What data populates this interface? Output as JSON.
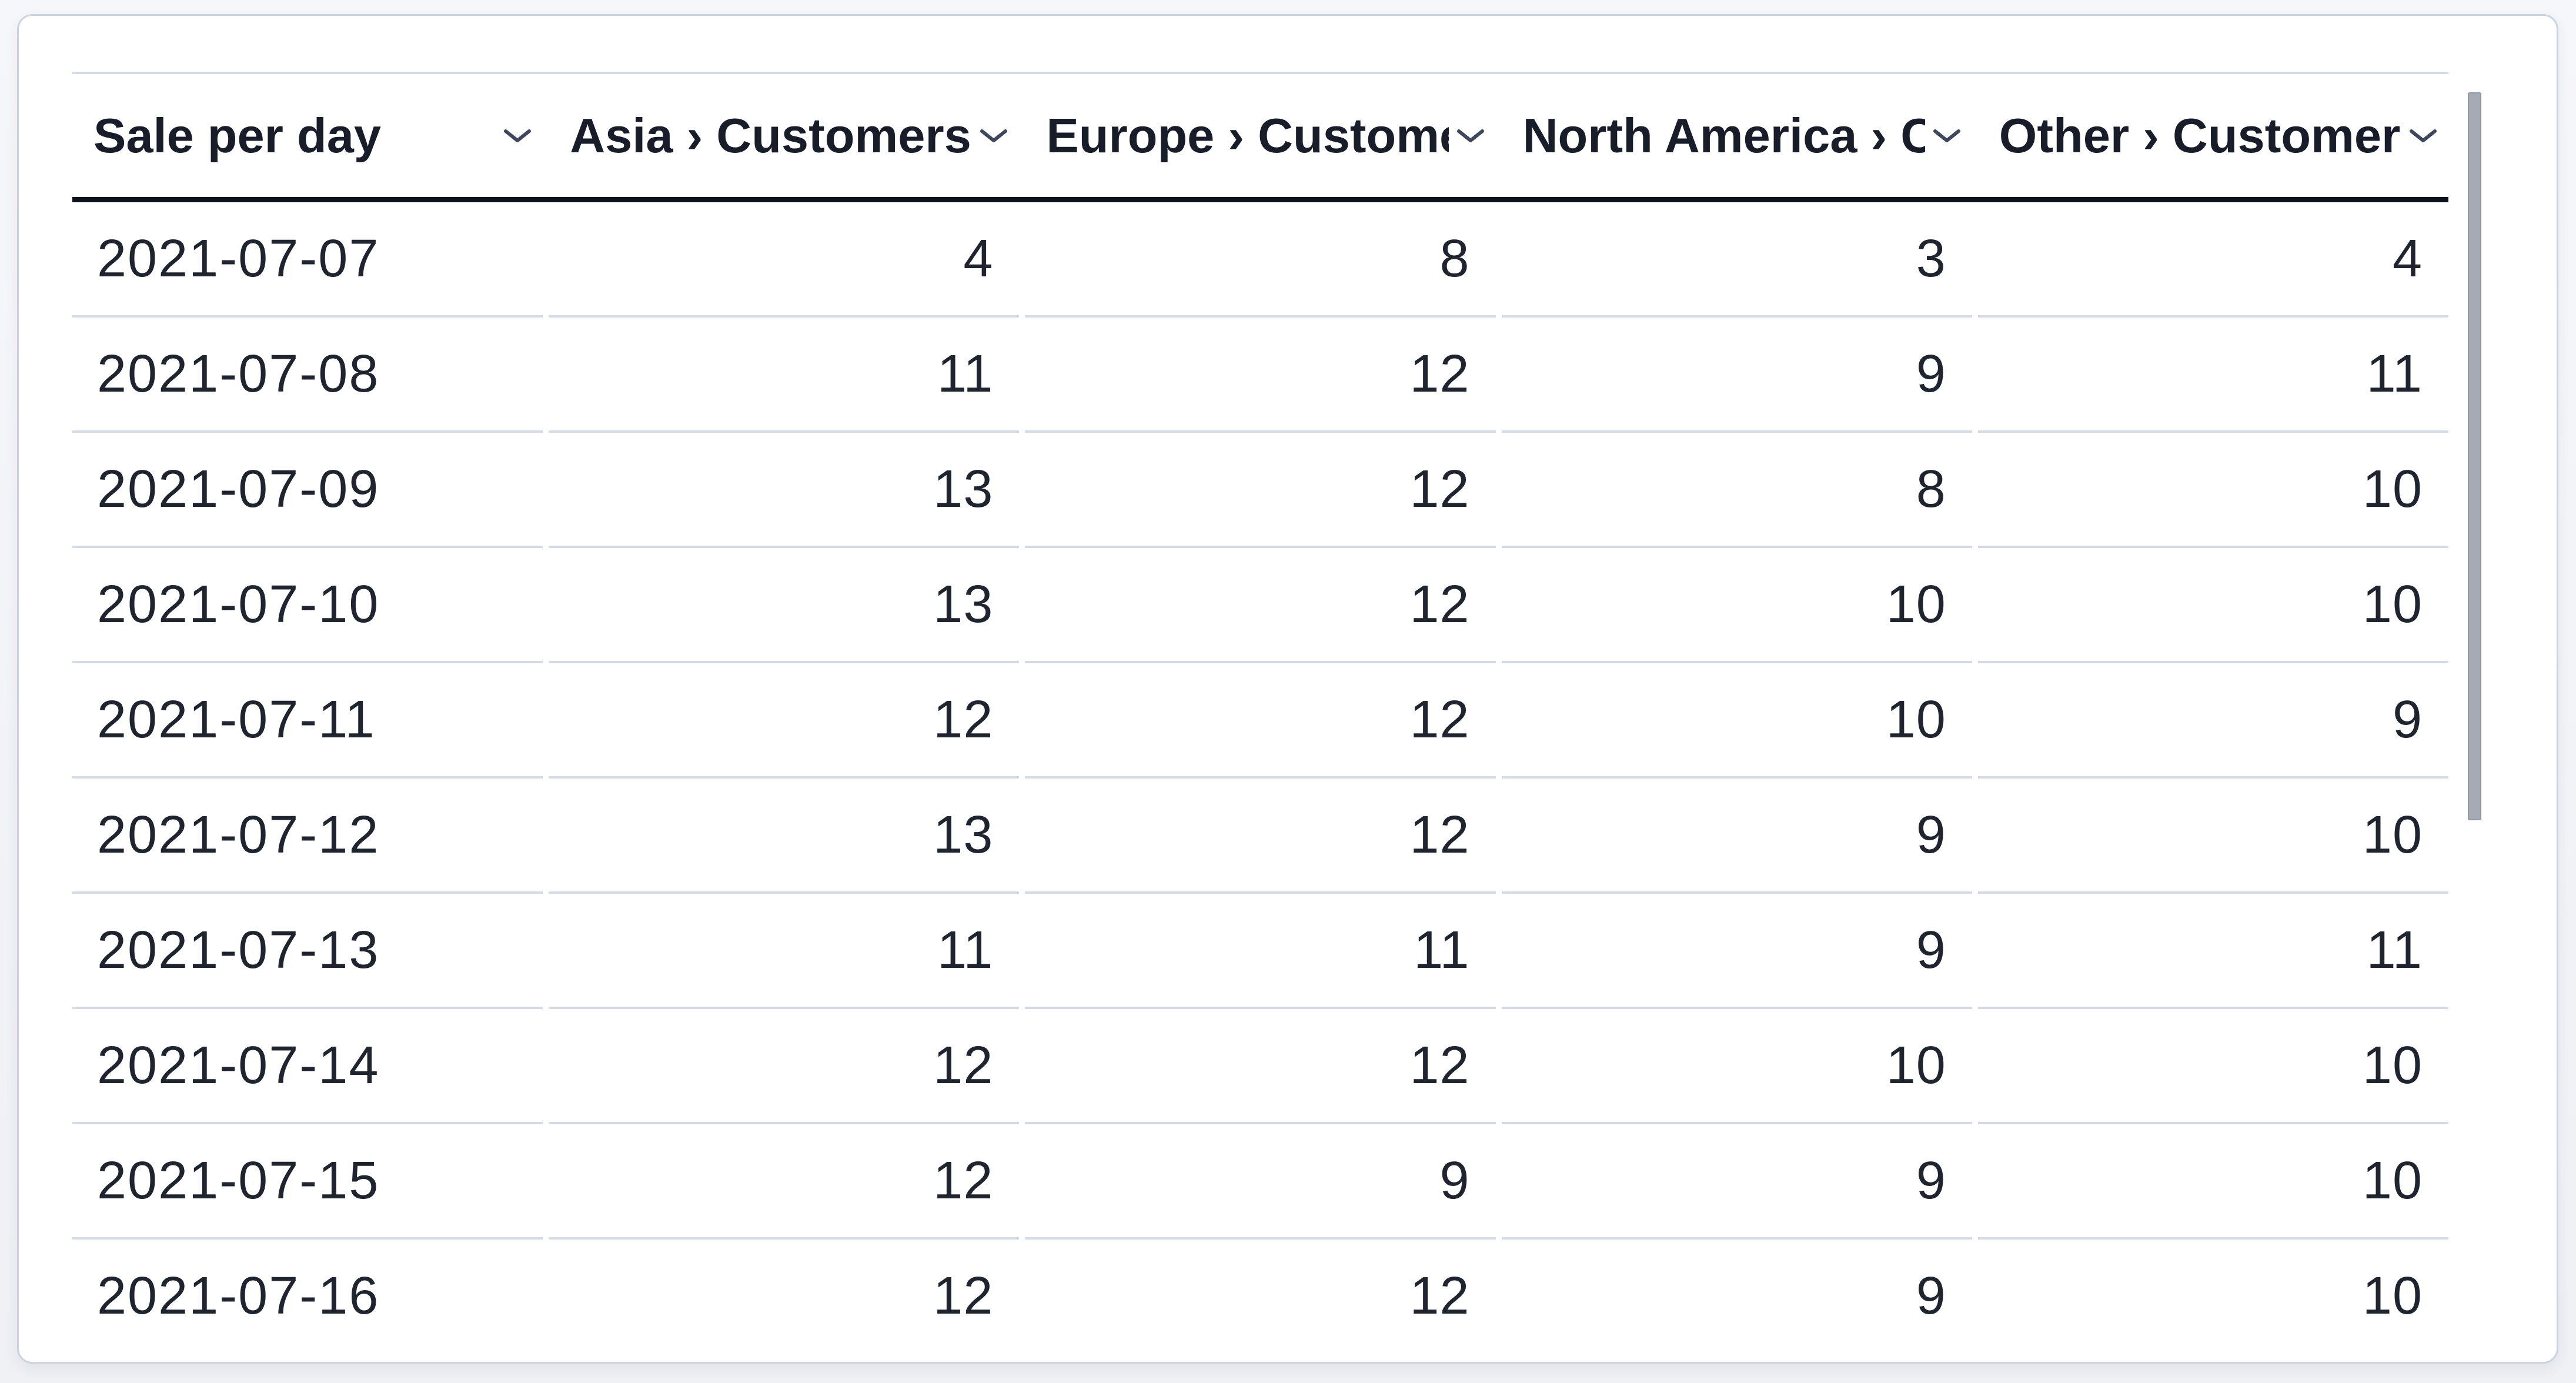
{
  "table": {
    "columns": [
      {
        "label": "Sale per day",
        "align": "left"
      },
      {
        "label": "Asia › Customers",
        "align": "right"
      },
      {
        "label": "Europe › Customers",
        "align": "right"
      },
      {
        "label": "North America › Customers",
        "align": "right"
      },
      {
        "label": "Other › Customers",
        "align": "right"
      }
    ],
    "rows": [
      [
        "2021-07-07",
        "4",
        "8",
        "3",
        "4"
      ],
      [
        "2021-07-08",
        "11",
        "12",
        "9",
        "11"
      ],
      [
        "2021-07-09",
        "13",
        "12",
        "8",
        "10"
      ],
      [
        "2021-07-10",
        "13",
        "12",
        "10",
        "10"
      ],
      [
        "2021-07-11",
        "12",
        "12",
        "10",
        "9"
      ],
      [
        "2021-07-12",
        "13",
        "12",
        "9",
        "10"
      ],
      [
        "2021-07-13",
        "11",
        "11",
        "9",
        "11"
      ],
      [
        "2021-07-14",
        "12",
        "12",
        "10",
        "10"
      ],
      [
        "2021-07-15",
        "12",
        "9",
        "9",
        "10"
      ],
      [
        "2021-07-16",
        "12",
        "12",
        "9",
        "10"
      ]
    ]
  },
  "icons": {
    "header_sort_icon": "chevron-down"
  },
  "colors": {
    "card_background": "#ffffff",
    "card_border": "#cbd3e1",
    "page_background": "#f2f4f7",
    "row_divider": "#d5dbe5",
    "header_underline": "#0e121d",
    "header_text": "#191d2a",
    "body_text": "#20242f",
    "chevron": "#3f475c",
    "scrollbar_thumb": "#a5aab5"
  }
}
